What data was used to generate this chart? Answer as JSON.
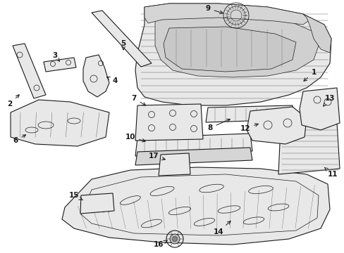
{
  "background_color": "#ffffff",
  "line_color": "#1a1a1a",
  "part_fill": "#e8e8e8",
  "rib_color": "#666666",
  "figsize": [
    4.89,
    3.6
  ],
  "dpi": 100,
  "lw_main": 0.8,
  "lw_thin": 0.5,
  "lw_rib": 0.35,
  "label_fontsize": 7.5
}
